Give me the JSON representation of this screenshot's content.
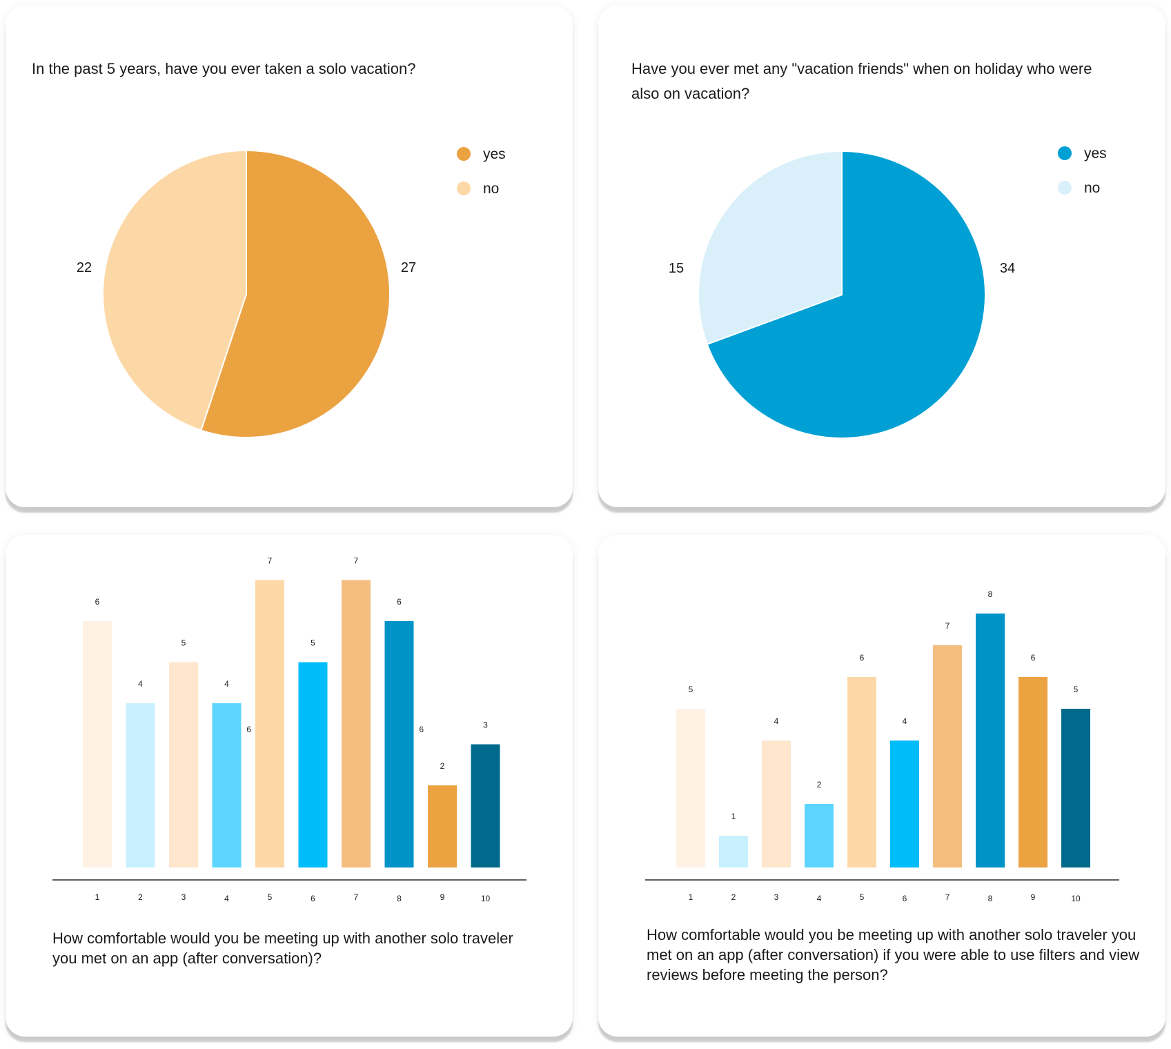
{
  "charts": [
    {
      "id": "pie1",
      "question": "In the past 5 years, have you ever taken a solo vacation?",
      "chart_data": {
        "type": "pie",
        "categories": [
          "yes",
          "no"
        ],
        "values": [
          27,
          22
        ],
        "colors": [
          "#EBA241",
          "#FDD8A7"
        ],
        "legend": "top-right"
      }
    },
    {
      "id": "pie2",
      "question": "Have you ever met any \"vacation friends\" when on holiday who were also on vacation?",
      "chart_data": {
        "type": "pie",
        "categories": [
          "yes",
          "no"
        ],
        "values": [
          34,
          15
        ],
        "colors": [
          "#00A0D5",
          "#D9F0FA"
        ],
        "legend": "top-right"
      }
    },
    {
      "id": "bar1",
      "question": "How comfortable would you be meeting up with another solo traveler you met on an app (after conversation)?",
      "chart_data": {
        "type": "bar",
        "categories": [
          "1",
          "2",
          "3",
          "4",
          "5",
          "6",
          "7",
          "8",
          "9",
          "10"
        ],
        "values": [
          6,
          4,
          5,
          4,
          7,
          5,
          7,
          6,
          2,
          3
        ],
        "colors": [
          "#FFF2E4",
          "#C8F0FF",
          "#FFE6CC",
          "#5CD5FF",
          "#FDD8A7",
          "#00BDFA",
          "#F3BE7F",
          "#0093C8",
          "#EBA241",
          "#006A8C"
        ],
        "ylim": [
          0,
          7
        ],
        "extra_labels": [
          "6",
          "6"
        ]
      }
    },
    {
      "id": "bar2",
      "question": "How comfortable would you be meeting up with another solo traveler you met on an app (after conversation) if you were able to use filters and view reviews before meeting the person?",
      "chart_data": {
        "type": "bar",
        "categories": [
          "1",
          "2",
          "3",
          "4",
          "5",
          "6",
          "7",
          "8",
          "9",
          "10"
        ],
        "values": [
          5,
          1,
          4,
          2,
          6,
          4,
          7,
          8,
          6,
          5
        ],
        "colors": [
          "#FFF2E4",
          "#C8F0FF",
          "#FFE6CC",
          "#5CD5FF",
          "#FDD8A7",
          "#00BDFA",
          "#F3BE7F",
          "#0093C8",
          "#EBA241",
          "#006A8C"
        ],
        "ylim": [
          0,
          8
        ]
      }
    }
  ]
}
